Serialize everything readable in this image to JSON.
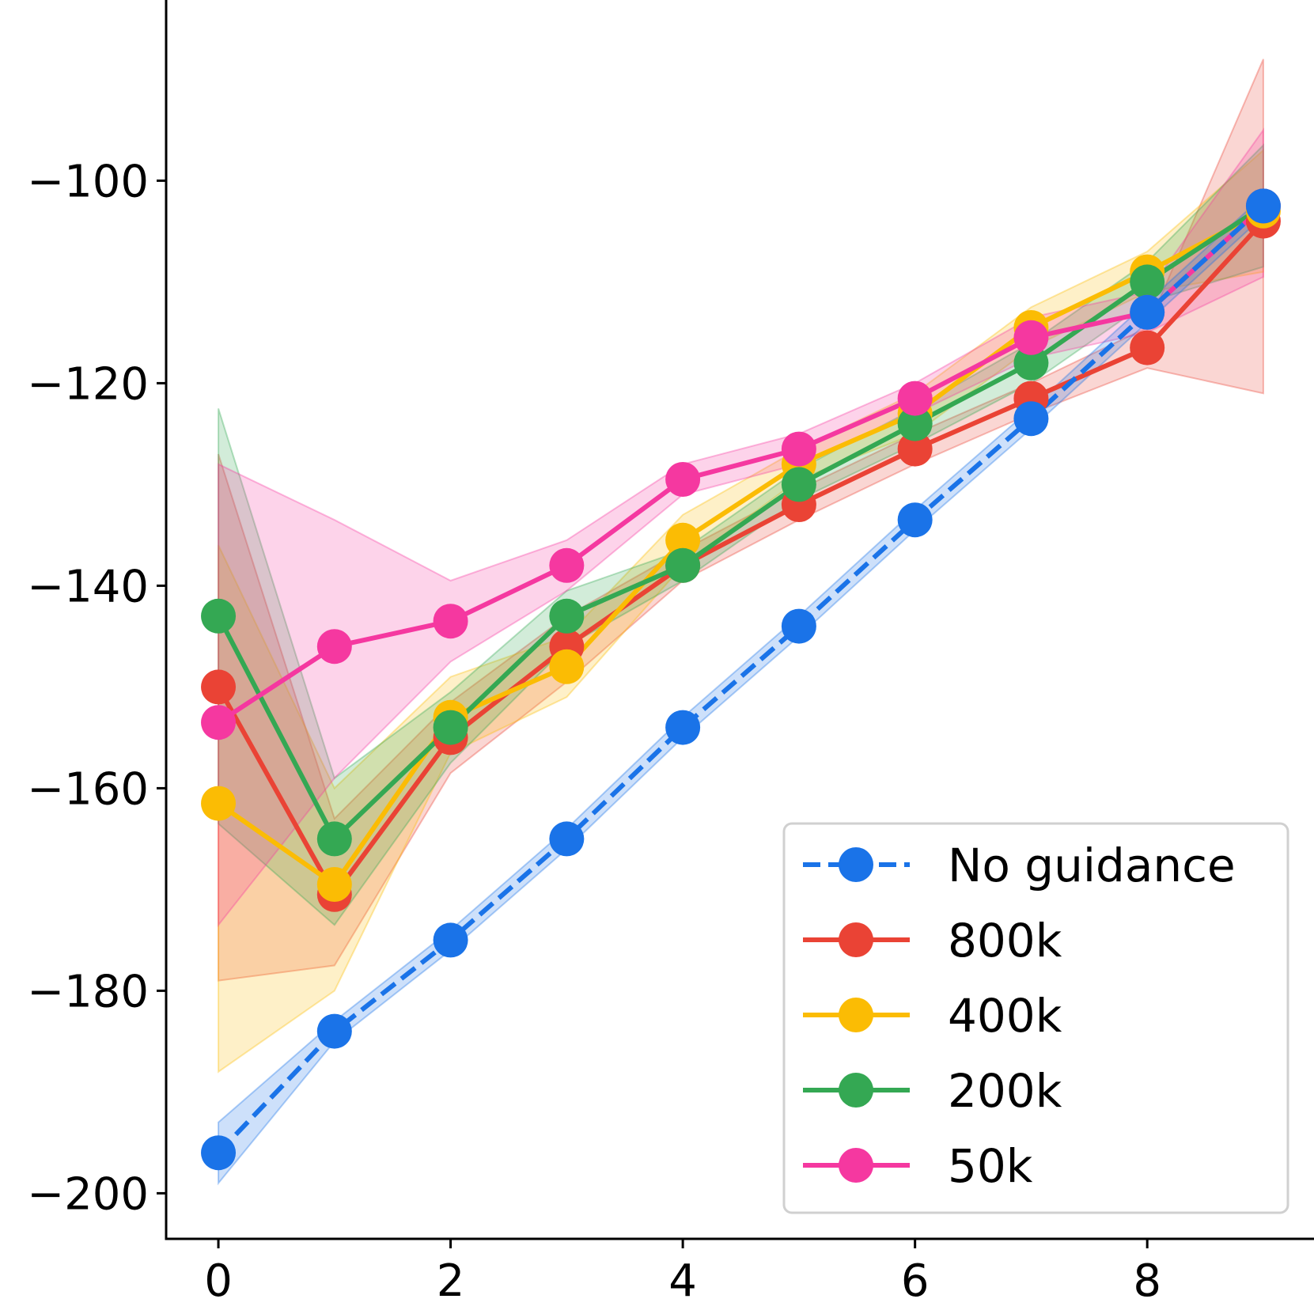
{
  "chart_data": {
    "type": "line",
    "title": "",
    "xlabel": "",
    "ylabel": "",
    "xlim": [
      -0.45,
      9.45
    ],
    "ylim": [
      -204.5,
      -82
    ],
    "xticks": [
      0,
      2,
      4,
      6,
      8
    ],
    "yticks": [
      -200,
      -180,
      -160,
      -140,
      -120,
      -100
    ],
    "xtick_labels": [
      "0",
      "2",
      "4",
      "6",
      "8"
    ],
    "ytick_labels": [
      "−200",
      "−180",
      "−160",
      "−140",
      "−120",
      "−100"
    ],
    "grid": false,
    "legend_position": "lower-right",
    "x": [
      0,
      1,
      2,
      3,
      4,
      5,
      6,
      7,
      8,
      9
    ],
    "series": [
      {
        "name": "800k",
        "color": "#ea4335",
        "style": "solid",
        "values": [
          -150,
          -170.5,
          -155,
          -146,
          -138,
          -132,
          -126.5,
          -121.5,
          -116.5,
          -104
        ],
        "lower": [
          -179,
          -177.5,
          -158.5,
          -149.5,
          -139.5,
          -133.5,
          -128,
          -123,
          -118.5,
          -121
        ],
        "upper": [
          -127,
          -163,
          -151.5,
          -143,
          -136.5,
          -130.5,
          -125,
          -120,
          -114.5,
          -88
        ]
      },
      {
        "name": "400k",
        "color": "#fbbc04",
        "style": "solid",
        "values": [
          -161.5,
          -169.5,
          -153,
          -148,
          -135.5,
          -128,
          -123,
          -114.5,
          -109,
          -103
        ],
        "lower": [
          -188,
          -180,
          -156.5,
          -151,
          -138,
          -129.5,
          -125,
          -116.5,
          -111,
          -109
        ],
        "upper": [
          -136,
          -160,
          -149,
          -145,
          -133,
          -126.5,
          -121,
          -112.5,
          -107,
          -97
        ]
      },
      {
        "name": "200k",
        "color": "#34a853",
        "style": "solid",
        "values": [
          -143,
          -165,
          -154,
          -143,
          -138,
          -130,
          -124,
          -118,
          -110,
          -102.5
        ],
        "lower": [
          -163.5,
          -173.5,
          -157.5,
          -146,
          -139.5,
          -131.5,
          -126,
          -120,
          -112,
          -108.5
        ],
        "upper": [
          -122.5,
          -159,
          -150.5,
          -140.5,
          -136.5,
          -128.5,
          -122.5,
          -116,
          -108,
          -96.5
        ]
      },
      {
        "name": "50k",
        "color": "#f538a0",
        "style": "solid",
        "values": [
          -153.5,
          -146,
          -143.5,
          -138,
          -129.5,
          -126.5,
          -121.5,
          -115.5,
          -113,
          -102.5
        ],
        "lower": [
          -173.5,
          -159,
          -147.5,
          -140.5,
          -131,
          -128,
          -123,
          -117.5,
          -115,
          -109.5
        ],
        "upper": [
          -128,
          -133.5,
          -139.5,
          -135.5,
          -128,
          -125,
          -120,
          -113.5,
          -111,
          -95
        ]
      },
      {
        "name": "No guidance",
        "color": "#1a73e8",
        "style": "dashed",
        "values": [
          -196,
          -184,
          -175,
          -165,
          -154,
          -144,
          -133.5,
          -123.5,
          -113,
          -102.5
        ],
        "lower": [
          -199,
          -185,
          -176,
          -166,
          -155,
          -145,
          -134.5,
          -124.5,
          -114,
          -103.5
        ],
        "upper": [
          -193,
          -183,
          -174,
          -164,
          -153,
          -143,
          -132.5,
          -122.5,
          -112,
          -101.5
        ]
      }
    ],
    "legend_order": [
      "No guidance",
      "800k",
      "400k",
      "200k",
      "50k"
    ]
  }
}
